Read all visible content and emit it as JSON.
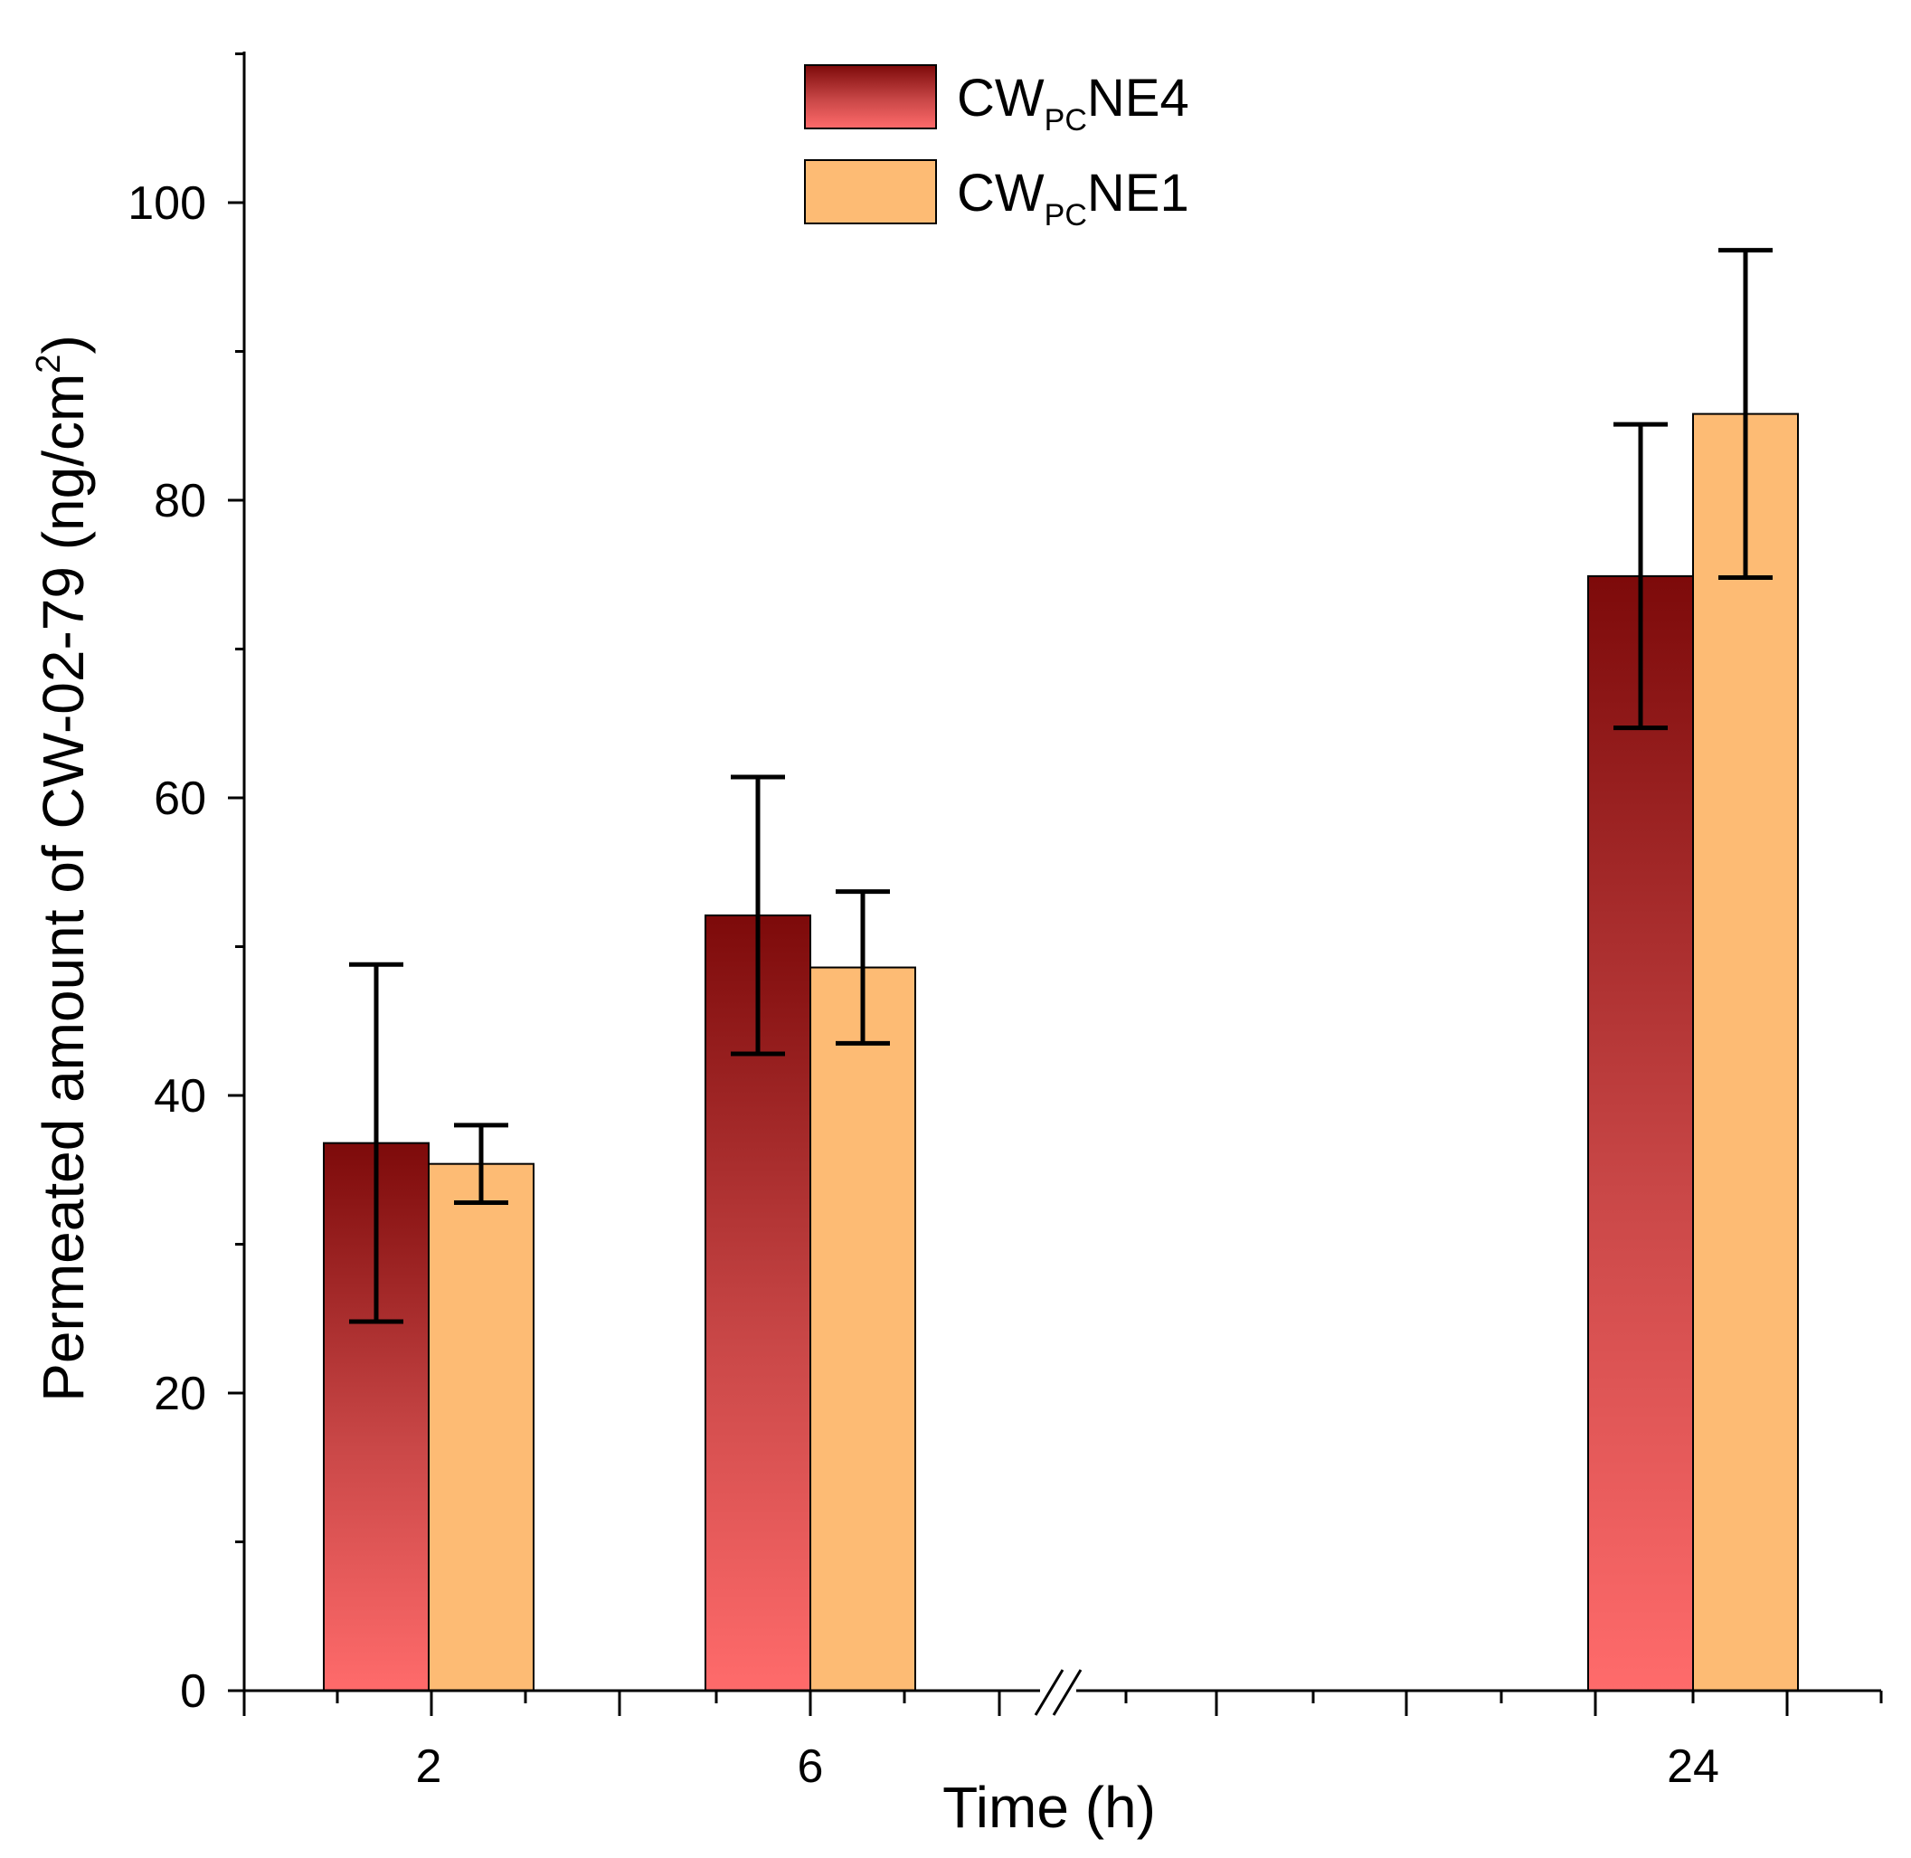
{
  "chart_data": {
    "type": "bar",
    "categories": [
      "2",
      "6",
      "24"
    ],
    "series": [
      {
        "name": "NE4",
        "legend_prefix": "CW",
        "legend_subscript": "PC",
        "legend_suffix": "NE4",
        "values": [
          36.8,
          52.1,
          74.9
        ],
        "errors": [
          12.0,
          9.3,
          10.2
        ],
        "color_top": "#7d0a0a",
        "color_bottom": "#ff6b6b"
      },
      {
        "name": "NE1",
        "legend_prefix": "CW",
        "legend_subscript": "PC",
        "legend_suffix": "NE1",
        "values": [
          35.4,
          48.6,
          85.8
        ],
        "errors": [
          2.6,
          5.1,
          11.0
        ],
        "color_top": "#fdbb74",
        "color_bottom": "#fdbb74"
      }
    ],
    "ylim": [
      0,
      110
    ],
    "y_ticks": [
      0,
      20,
      40,
      60,
      80,
      100
    ],
    "y_tick_labels": [
      "0",
      "20",
      "40",
      "60",
      "80",
      "100"
    ],
    "xlabel": "Time (h)",
    "ylabel": "Permeated amount of CW-02-79 (ng/cm",
    "ylabel_superscript": "2",
    "ylabel_close": ")",
    "axis_break": true,
    "legend_position": "top-center"
  }
}
